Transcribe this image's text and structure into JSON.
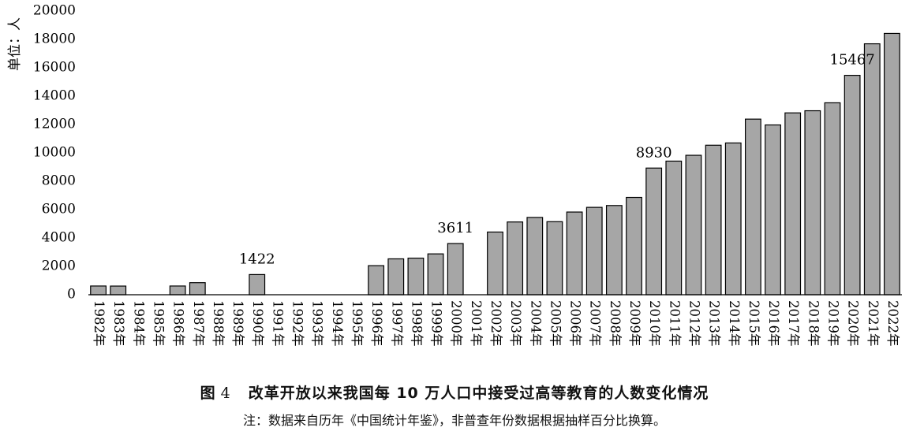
{
  "chart_data": {
    "type": "bar",
    "ylabel": "单位：人",
    "ylim": [
      0,
      20000
    ],
    "yticks": [
      0,
      2000,
      4000,
      6000,
      8000,
      10000,
      12000,
      14000,
      16000,
      18000,
      20000
    ],
    "grid": false,
    "bar_color": "#a6a6a6",
    "categories": [
      "1982年",
      "1983年",
      "1984年",
      "1985年",
      "1986年",
      "1987年",
      "1988年",
      "1989年",
      "1990年",
      "1991年",
      "1992年",
      "1993年",
      "1994年",
      "1995年",
      "1996年",
      "1997年",
      "1998年",
      "1999年",
      "2000年",
      "2001年",
      "2002年",
      "2003年",
      "2004年",
      "2005年",
      "2006年",
      "2007年",
      "2008年",
      "2009年",
      "2010年",
      "2011年",
      "2012年",
      "2013年",
      "2014年",
      "2015年",
      "2016年",
      "2017年",
      "2018年",
      "2019年",
      "2020年",
      "2021年",
      "2022年"
    ],
    "values": [
      615,
      610,
      null,
      null,
      615,
      850,
      null,
      null,
      1422,
      null,
      null,
      null,
      null,
      null,
      2050,
      2530,
      2580,
      2880,
      3611,
      null,
      4420,
      5130,
      5450,
      5150,
      5830,
      6160,
      6290,
      6860,
      8930,
      9420,
      9830,
      10540,
      10700,
      12380,
      11970,
      12820,
      12970,
      13530,
      15467,
      17690,
      18420
    ],
    "data_labels": [
      {
        "category": "1990年",
        "text": "1422"
      },
      {
        "category": "2000年",
        "text": "3611"
      },
      {
        "category": "2010年",
        "text": "8930"
      },
      {
        "category": "2020年",
        "text": "15467"
      }
    ]
  },
  "figure": {
    "label": "图",
    "number": "4",
    "title": "改革开放以来我国每 10 万人口中接受过高等教育的人数变化情况",
    "note": "注：数据来自历年《中国统计年鉴》，非普查年份数据根据抽样百分比换算。"
  }
}
